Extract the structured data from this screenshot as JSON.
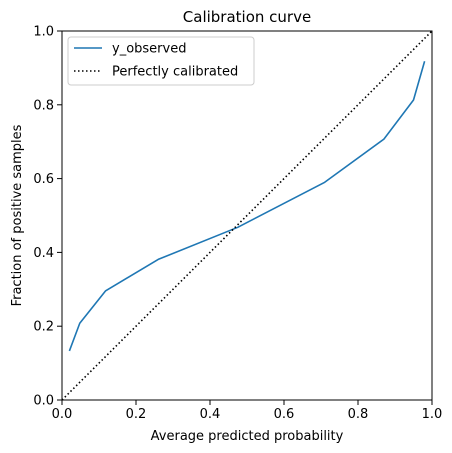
{
  "chart_data": {
    "type": "line",
    "title": "Calibration curve",
    "xlabel": "Average predicted probability",
    "ylabel": "Fraction of positive samples",
    "xlim": [
      0.0,
      1.0
    ],
    "ylim": [
      0.0,
      1.0
    ],
    "xticks": [
      "0.0",
      "0.2",
      "0.4",
      "0.6",
      "0.8",
      "1.0"
    ],
    "yticks": [
      "0.0",
      "0.2",
      "0.4",
      "0.6",
      "0.8",
      "1.0"
    ],
    "grid": false,
    "legend_position": "top-left",
    "series": [
      {
        "name": "y_observed",
        "color": "#1f77b4",
        "style": "solid",
        "x": [
          0.02,
          0.048,
          0.118,
          0.26,
          0.475,
          0.71,
          0.87,
          0.95,
          0.98
        ],
        "y": [
          0.133,
          0.208,
          0.296,
          0.381,
          0.468,
          0.59,
          0.707,
          0.813,
          0.918
        ]
      },
      {
        "name": "Perfectly calibrated",
        "color": "#000000",
        "style": "dotted",
        "x": [
          0.0,
          1.0
        ],
        "y": [
          0.0,
          1.0
        ]
      }
    ]
  }
}
